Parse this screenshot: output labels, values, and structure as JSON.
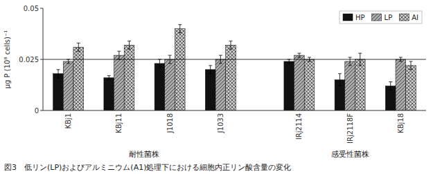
{
  "chart_data": {
    "type": "bar",
    "categories": [
      "KBj1",
      "KBj11",
      "J1018",
      "J1033",
      "IRj2114",
      "IRj2118F",
      "KBj18"
    ],
    "series": [
      {
        "name": "HP",
        "color": "#111111",
        "values": [
          0.018,
          0.016,
          0.023,
          0.02,
          0.024,
          0.015,
          0.012
        ],
        "errors": [
          0.002,
          0.001,
          0.002,
          0.002,
          0.001,
          0.003,
          0.002
        ]
      },
      {
        "name": "LP",
        "color": "#aaaaaa",
        "values": [
          0.024,
          0.027,
          0.025,
          0.025,
          0.027,
          0.024,
          0.025
        ],
        "errors": [
          0.001,
          0.002,
          0.002,
          0.002,
          0.001,
          0.002,
          0.001
        ]
      },
      {
        "name": "AI",
        "color": "#cccccc",
        "values": [
          0.031,
          0.032,
          0.04,
          0.032,
          0.025,
          0.025,
          0.022
        ],
        "errors": [
          0.002,
          0.002,
          0.002,
          0.002,
          0.001,
          0.003,
          0.002
        ]
      }
    ],
    "groups": [
      {
        "label": "耐性菌株",
        "categories": [
          "KBj1",
          "KBj11",
          "J1018",
          "J1033"
        ]
      },
      {
        "label": "感受性菌株",
        "categories": [
          "IRj2114",
          "IRj2118F",
          "KBj18"
        ]
      }
    ],
    "ylabel": "μg P (10⁸ cells)⁻¹",
    "ylim": [
      0,
      0.05
    ],
    "yticks": [
      0,
      0.025,
      0.05
    ],
    "reference_line": 0.025,
    "legend": "upper right",
    "grid": false,
    "caption": "図3　低リン(LP)およびアルミニウム(A1)処理下における細胞内正リン酸含量の変化"
  }
}
